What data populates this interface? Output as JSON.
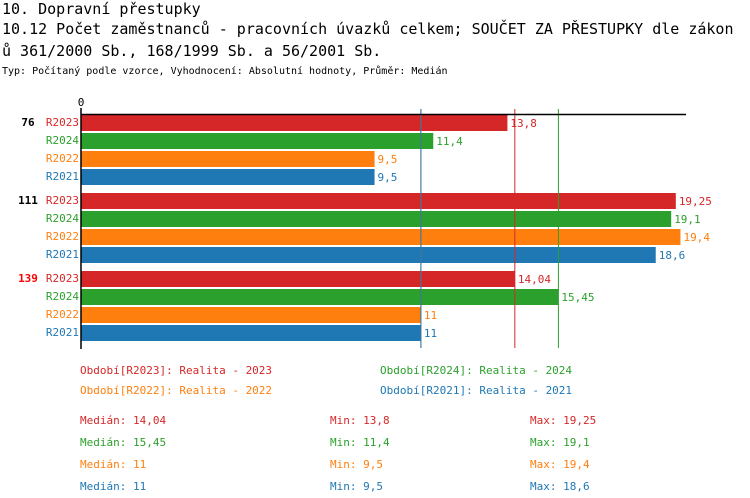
{
  "header": {
    "title": "10. Dopravní přestupky",
    "subtitle_line1": "10.12 Počet zaměstnanců - pracovních úvazků celkem; SOUČET ZA PŘESTUPKY dle zákon",
    "subtitle_line2": "ů 361/2000 Sb., 168/1999 Sb. a 56/2001 Sb.",
    "info": "Typ: Počítaný podle vzorce, Vyhodnocení: Absolutní hodnoty, Průměr: Medián"
  },
  "chart_data": {
    "type": "bar",
    "orientation": "horizontal",
    "xlim": [
      0,
      19.25
    ],
    "x_tick_labels": [
      "0"
    ],
    "categories": [
      {
        "label": "76",
        "highlight": false
      },
      {
        "label": "111",
        "highlight": false
      },
      {
        "label": "139",
        "highlight": true
      }
    ],
    "series": [
      {
        "name": "R2023",
        "color": "#d62728",
        "values": [
          13.8,
          19.25,
          14.04
        ],
        "labels": [
          "13,8",
          "19,25",
          "14,04"
        ]
      },
      {
        "name": "R2024",
        "color": "#2ca02c",
        "values": [
          11.4,
          19.1,
          15.45
        ],
        "labels": [
          "11,4",
          "19,1",
          "15,45"
        ]
      },
      {
        "name": "R2022",
        "color": "#ff7f0e",
        "values": [
          9.5,
          19.4,
          11
        ],
        "labels": [
          "9,5",
          "19,4",
          "11"
        ]
      },
      {
        "name": "R2021",
        "color": "#1f77b4",
        "values": [
          9.5,
          18.6,
          11
        ],
        "labels": [
          "9,5",
          "18,6",
          "11"
        ]
      }
    ],
    "median_lines": [
      {
        "series": "R2023",
        "value": 14.04,
        "color": "#d62728"
      },
      {
        "series": "R2024",
        "value": 15.45,
        "color": "#2ca02c"
      },
      {
        "series": "R2022",
        "value": 11,
        "color": "#ff7f0e"
      },
      {
        "series": "R2021",
        "value": 11,
        "color": "#1f77b4"
      }
    ],
    "highlight_color": "#ff0000",
    "legend": [
      {
        "text": "Období[R2023]: Realita - 2023",
        "color": "#d62728"
      },
      {
        "text": "Období[R2024]: Realita - 2024",
        "color": "#2ca02c"
      },
      {
        "text": "Období[R2022]: Realita - 2022",
        "color": "#ff7f0e"
      },
      {
        "text": "Období[R2021]: Realita - 2021",
        "color": "#1f77b4"
      }
    ],
    "stats": [
      {
        "color": "#d62728",
        "median": "Medián: 14,04",
        "min": "Min: 13,8",
        "max": "Max: 19,25"
      },
      {
        "color": "#2ca02c",
        "median": "Medián: 15,45",
        "min": "Min: 11,4",
        "max": "Max: 19,1"
      },
      {
        "color": "#ff7f0e",
        "median": "Medián: 11",
        "min": "Min: 9,5",
        "max": "Max: 19,4"
      },
      {
        "color": "#1f77b4",
        "median": "Medián: 11",
        "min": "Min: 9,5",
        "max": "Max: 18,6"
      }
    ]
  }
}
